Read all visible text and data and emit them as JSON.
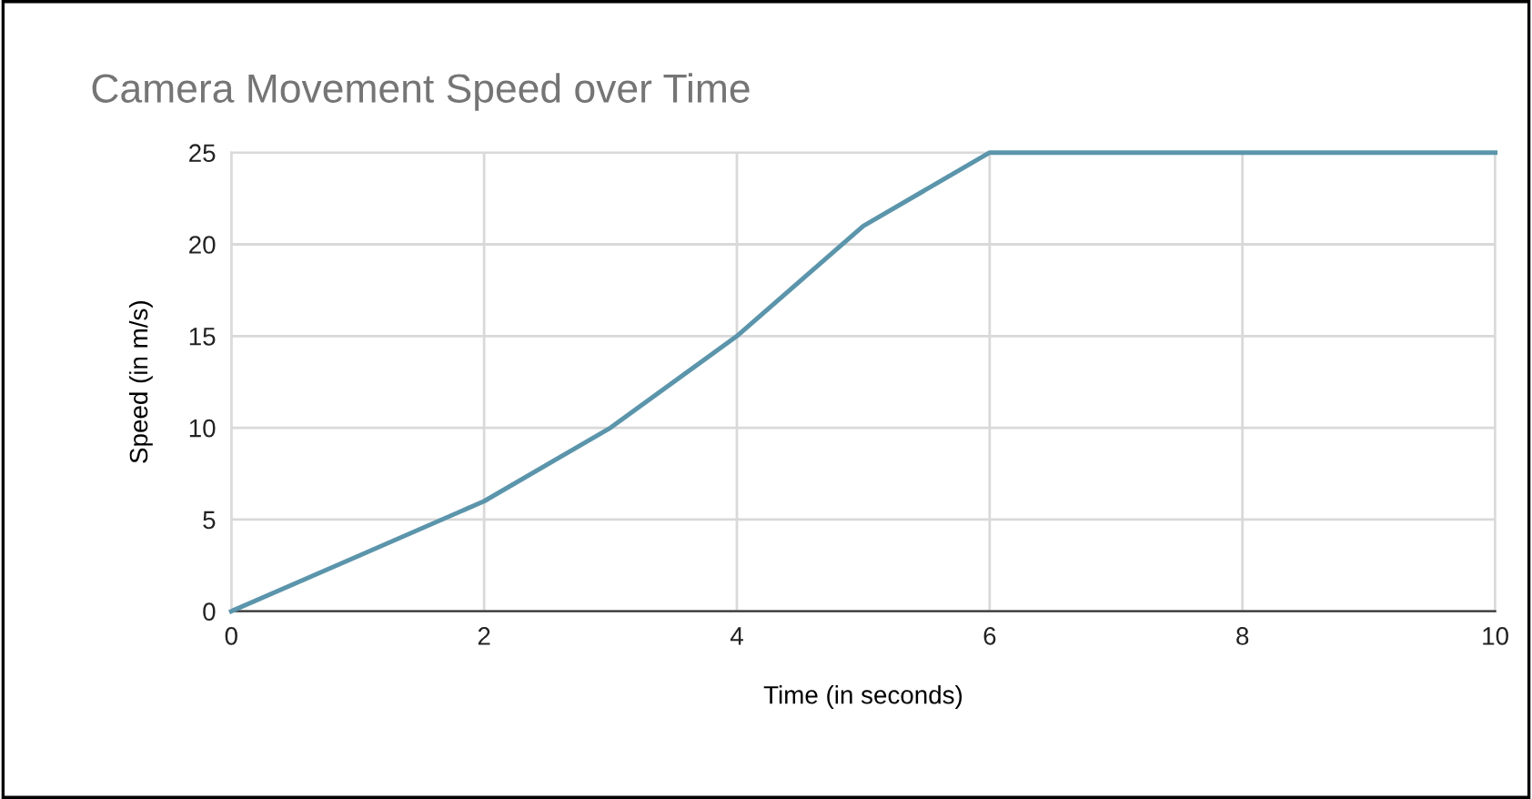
{
  "chart_data": {
    "type": "line",
    "title": "Camera Movement Speed over Time",
    "xlabel": "Time (in seconds)",
    "ylabel": "Speed (in m/s)",
    "x": [
      0,
      1,
      2,
      3,
      4,
      5,
      6,
      7,
      8,
      9,
      10
    ],
    "series": [
      {
        "color": "#5b95ab",
        "values": [
          0,
          3,
          6,
          10,
          15,
          21,
          25,
          25,
          25,
          25,
          25
        ]
      }
    ],
    "xlim": [
      0,
      10
    ],
    "xticks": [
      0,
      2,
      4,
      6,
      8,
      10
    ],
    "ylim": [
      0,
      25
    ],
    "yticks": [
      0,
      5,
      10,
      15,
      20,
      25
    ],
    "grid": true,
    "marker": "none",
    "line_style": "solid"
  }
}
